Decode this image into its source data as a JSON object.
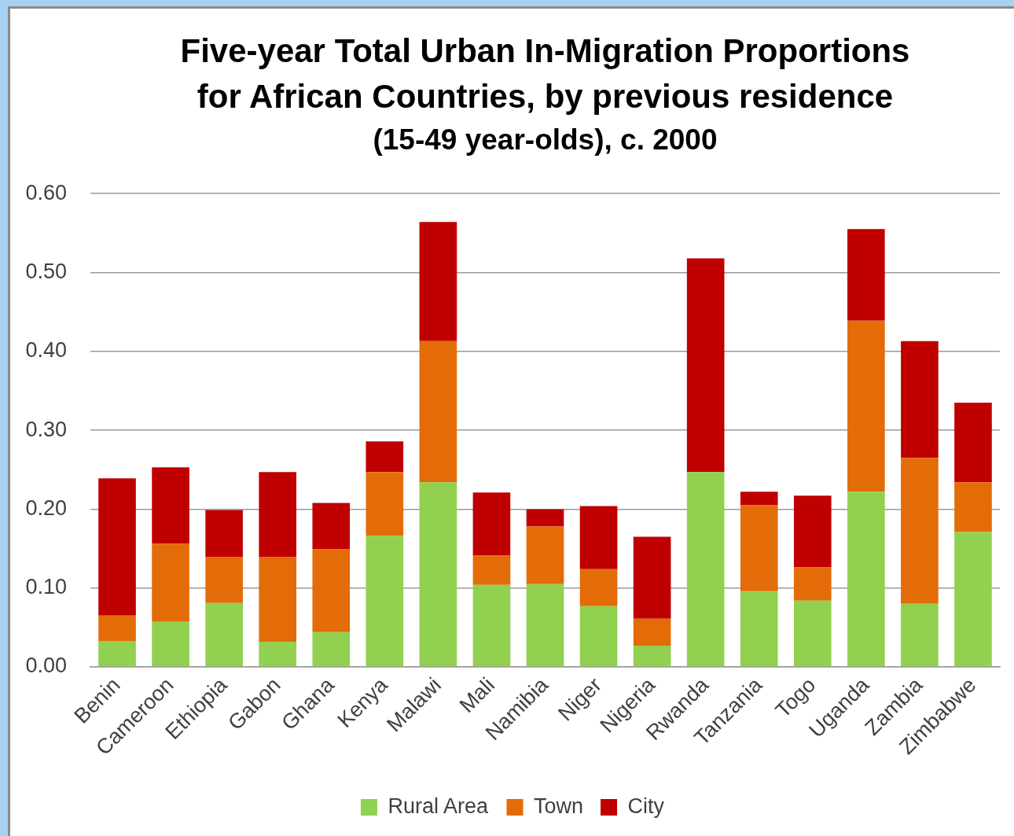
{
  "chart_data": {
    "type": "bar",
    "title": "Five-year Total Urban In-Migration Proportions for African Countries, by previous residence",
    "subtitle": "(15-49 year-olds), c. 2000",
    "categories": [
      "Benin",
      "Cameroon",
      "Ethiopia",
      "Gabon",
      "Ghana",
      "Kenya",
      "Malawi",
      "Mali",
      "Namibia",
      "Niger",
      "Nigeria",
      "Rwanda",
      "Tanzania",
      "Togo",
      "Uganda",
      "Zambia",
      "Zimbabwe"
    ],
    "series": [
      {
        "name": "Rural Area",
        "color": "#92d050",
        "values": [
          0.033,
          0.057,
          0.081,
          0.032,
          0.044,
          0.166,
          0.234,
          0.104,
          0.105,
          0.077,
          0.027,
          0.247,
          0.096,
          0.084,
          0.222,
          0.08,
          0.171
        ]
      },
      {
        "name": "Town",
        "color": "#e36c09",
        "values": [
          0.032,
          0.099,
          0.058,
          0.107,
          0.105,
          0.081,
          0.179,
          0.037,
          0.073,
          0.047,
          0.034,
          0,
          0.109,
          0.042,
          0.217,
          0.185,
          0.063
        ]
      },
      {
        "name": "City",
        "color": "#c00000",
        "values": [
          0.174,
          0.097,
          0.06,
          0.108,
          0.059,
          0.039,
          0.151,
          0.08,
          0.022,
          0.08,
          0.104,
          0.271,
          0.017,
          0.091,
          0.116,
          0.148,
          0.101
        ]
      }
    ],
    "stacked": true,
    "ylim": [
      0,
      0.6
    ],
    "yticks": [
      {
        "value": 0,
        "label": "0.00"
      },
      {
        "value": 0.1,
        "label": "0.10"
      },
      {
        "value": 0.2,
        "label": "0.20"
      },
      {
        "value": 0.3,
        "label": "0.30"
      },
      {
        "value": 0.4,
        "label": "0.40"
      },
      {
        "value": 0.5,
        "label": "0.50"
      },
      {
        "value": 0.6,
        "label": "0.60"
      }
    ],
    "grid": "y",
    "legend": "bottom"
  }
}
